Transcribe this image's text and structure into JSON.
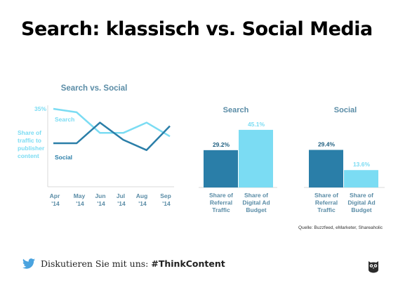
{
  "title": "Search: klassisch vs. Social Media",
  "footer": {
    "prefix": "Diskutieren Sie mit uns: ",
    "hashtag": "#ThinkContent",
    "icon": "twitter-bird-icon"
  },
  "logo_icon": "owl-logo-icon",
  "colors": {
    "search": "#7bdcf3",
    "social": "#2a7ea8",
    "axis": "#d9d9d9",
    "label": "#5a8ca6",
    "value": "#7bdcf3"
  },
  "chart_data": [
    {
      "type": "line",
      "title": "Search vs. Social",
      "ylabel": "Share of traffic to publisher content",
      "y_annotation": "35%",
      "categories": [
        "Apr '14",
        "May '14",
        "Jun '14",
        "Jul '14",
        "Aug '14",
        "Sep '14"
      ],
      "series": [
        {
          "name": "Search",
          "values": [
            35,
            34,
            28,
            28,
            31,
            27
          ]
        },
        {
          "name": "Social",
          "values": [
            25,
            25,
            31,
            26,
            23,
            30
          ]
        }
      ]
    },
    {
      "type": "bar",
      "groups": [
        {
          "title": "Search",
          "bars": [
            {
              "label": "Share of Referral Traffic",
              "value": 29.2,
              "value_label": "29.2%"
            },
            {
              "label": "Share of Digital Ad Budget",
              "value": 45.1,
              "value_label": "45.1%"
            }
          ]
        },
        {
          "title": "Social",
          "bars": [
            {
              "label": "Share of Referral Traffic",
              "value": 29.4,
              "value_label": "29.4%"
            },
            {
              "label": "Share of Digital Ad Budget",
              "value": 13.6,
              "value_label": "13.6%"
            }
          ]
        }
      ],
      "source": "Quelle: Buzzfeed, eMarketer, Shareaholic"
    }
  ]
}
